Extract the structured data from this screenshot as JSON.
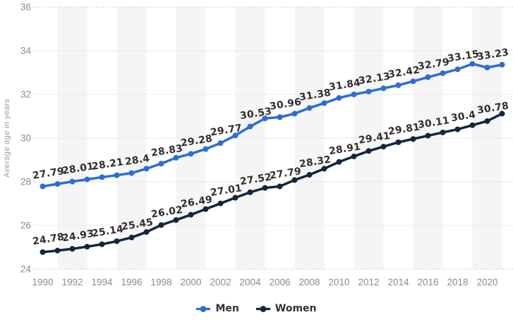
{
  "chart_data": {
    "type": "line",
    "title": "",
    "xlabel": "",
    "ylabel": "Average age in years",
    "ylim": [
      24,
      36
    ],
    "yticks": [
      24,
      26,
      28,
      30,
      32,
      34,
      36
    ],
    "xticks": [
      1990,
      1992,
      1994,
      1996,
      1998,
      2000,
      2002,
      2004,
      2006,
      2008,
      2010,
      2012,
      2014,
      2016,
      2018,
      2020
    ],
    "x": [
      1990,
      1991,
      1992,
      1993,
      1994,
      1995,
      1996,
      1997,
      1998,
      1999,
      2000,
      2001,
      2002,
      2003,
      2004,
      2005,
      2006,
      2007,
      2008,
      2009,
      2010,
      2011,
      2012,
      2013,
      2014,
      2015,
      2016,
      2017,
      2018,
      2019,
      2020,
      2021
    ],
    "label_years": [
      1990,
      1992,
      1994,
      1996,
      1998,
      2000,
      2002,
      2004,
      2006,
      2008,
      2010,
      2012,
      2014,
      2016,
      2018,
      2020
    ],
    "series": [
      {
        "name": "Men",
        "color": "#2c6dd5",
        "values": [
          27.79,
          27.9,
          28.01,
          28.11,
          28.21,
          28.3,
          28.4,
          28.6,
          28.83,
          29.1,
          29.28,
          29.5,
          29.77,
          30.12,
          30.53,
          30.9,
          30.96,
          31.12,
          31.38,
          31.6,
          31.84,
          32.0,
          32.13,
          32.28,
          32.42,
          32.6,
          32.79,
          32.97,
          33.15,
          33.4,
          33.23,
          33.36
        ],
        "labels": [
          "27.79",
          "28.01",
          "28.21",
          "28.4",
          "28.83",
          "29.28",
          "29.77",
          "30.53",
          "30.96",
          "31.38",
          "31.84",
          "32.13",
          "32.42",
          "32.79",
          "33.15",
          "33.23"
        ]
      },
      {
        "name": "Women",
        "color": "#13263e",
        "values": [
          24.78,
          24.85,
          24.93,
          25.03,
          25.14,
          25.28,
          25.45,
          25.7,
          26.02,
          26.25,
          26.49,
          26.75,
          27.01,
          27.27,
          27.52,
          27.72,
          27.79,
          28.08,
          28.32,
          28.6,
          28.91,
          29.16,
          29.41,
          29.61,
          29.81,
          29.96,
          30.11,
          30.26,
          30.4,
          30.59,
          30.78,
          31.12
        ],
        "labels": [
          "24.78",
          "24.93",
          "25.14",
          "25.45",
          "26.02",
          "26.49",
          "27.01",
          "27.52",
          "27.79",
          "28.32",
          "28.91",
          "29.41",
          "29.81",
          "30.11",
          "30.4",
          "30.78"
        ]
      }
    ],
    "legend_position": "bottom",
    "grid": "horizontal",
    "background_bands": "alternating vertical bands, one per 2 years"
  },
  "colors": {
    "background": "#ffffff",
    "band": "#f5f5f6",
    "gridline": "#e9e9e9",
    "axis_dotted": "#c8c8c8",
    "tick_text": "#8c8c8c",
    "label_text": "#2f2f2f",
    "legend_text": "#333333"
  }
}
